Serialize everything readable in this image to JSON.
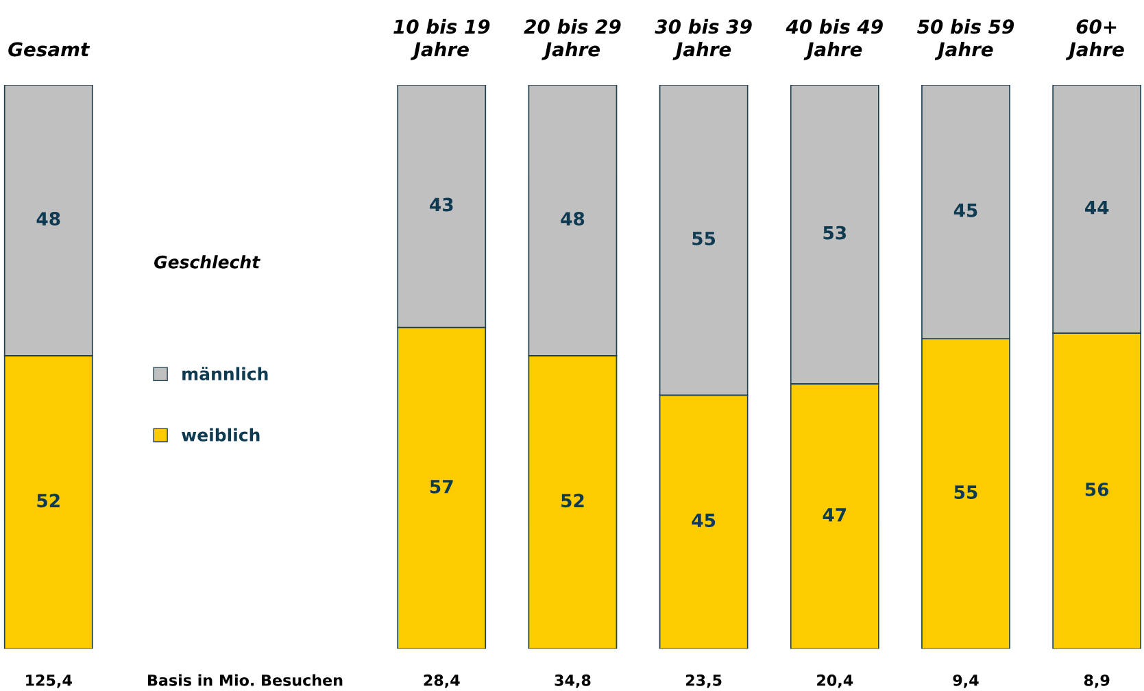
{
  "chart_data": {
    "type": "bar",
    "stacked": true,
    "data_labels": true,
    "legend": "center left",
    "legend_title": "Geschlecht",
    "categories": [
      "Gesamt",
      null,
      null,
      "10 bis 19\nJahre",
      "20 bis 29\nJahre",
      "30 bis 39\nJahre",
      "40 bis 49\nJahre",
      "50 bis 59\nJahre",
      "60+\nJahre"
    ],
    "series": [
      {
        "name": "weiblich",
        "color": "#fccc00",
        "values": [
          52,
          null,
          null,
          57,
          52,
          45,
          47,
          55,
          56
        ]
      },
      {
        "name": "männlich",
        "color": "#c0c0c0",
        "values": [
          48,
          null,
          null,
          43,
          48,
          55,
          53,
          45,
          44
        ]
      }
    ],
    "annotations": [
      "125,4",
      "Basis in Mio. Besuchen",
      "28,4",
      "34,8",
      "23,5",
      "20,4",
      "9,4",
      "8,9"
    ]
  }
}
